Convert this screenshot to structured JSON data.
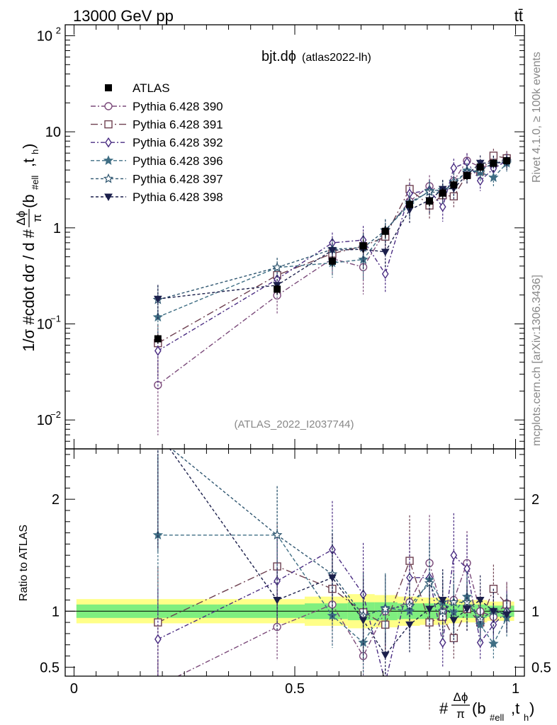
{
  "header": {
    "left": "13000 GeV pp",
    "right": "tt̄"
  },
  "side": {
    "rivet": "Rivet 4.1.0, ≥ 100k events",
    "mcplots": "mcplots.cern.ch [arXiv:1306.3436]"
  },
  "chart_data": {
    "type": "line",
    "title": "bjt.dϕ",
    "subtitle": "(atlas2022-lh)",
    "watermark": "(ATLAS_2022_I2037744)",
    "ylabel": "1/σ #cdot dσ / d #Δϕ/π(b#ell,th)",
    "ylabel_parts": {
      "prefix": "1/σ #cdot dσ / d #",
      "frac_num": "Δϕ",
      "frac_den": "π",
      "paren_open": "(b",
      "sub1": "#ell",
      "mid": ",t",
      "sub2": "h",
      "paren_close": ")"
    },
    "xlabel_parts": {
      "prefix": "#",
      "frac_num": "Δϕ",
      "frac_den": "π",
      "paren_open": "(b",
      "sub1": "#ell",
      "mid": ",t",
      "sub2": "h",
      "paren_close": ")"
    },
    "ratio_ylabel": "Ratio to ATLAS",
    "xlim": [
      -0.02,
      1.02
    ],
    "ylim": [
      0.005,
      130
    ],
    "yscale": "log",
    "ratio_ylim": [
      0.42,
      2.45
    ],
    "x_ticks": [
      {
        "v": 0,
        "label": "0"
      },
      {
        "v": 0.5,
        "label": "0.5"
      },
      {
        "v": 1,
        "label": "1"
      }
    ],
    "y_ticks": [
      {
        "v": 0.01,
        "base": "10",
        "exp": "−2"
      },
      {
        "v": 0.1,
        "base": "10",
        "exp": "−1"
      },
      {
        "v": 1,
        "base": "1",
        "exp": ""
      },
      {
        "v": 10,
        "base": "10",
        "exp": ""
      },
      {
        "v": 100,
        "base": "10",
        "exp": "2"
      }
    ],
    "ratio_ticks": [
      {
        "v": 0.5,
        "label": "0.5"
      },
      {
        "v": 1,
        "label": "1"
      },
      {
        "v": 2,
        "label": "2"
      }
    ],
    "x": [
      0.19,
      0.46,
      0.585,
      0.655,
      0.705,
      0.76,
      0.805,
      0.835,
      0.86,
      0.89,
      0.92,
      0.95,
      0.98
    ],
    "data": {
      "name": "ATLAS",
      "values": [
        0.07,
        0.23,
        0.45,
        0.65,
        0.92,
        1.75,
        1.9,
        2.3,
        2.8,
        3.5,
        4.3,
        4.7,
        5.0
      ],
      "stat_rel": [
        0.06,
        0.06,
        0.07,
        0.08,
        0.08,
        0.07,
        0.07,
        0.07,
        0.06,
        0.06,
        0.06,
        0.05,
        0.05
      ],
      "syst_rel": [
        0.09,
        0.09,
        0.11,
        0.13,
        0.12,
        0.11,
        0.1,
        0.1,
        0.09,
        0.08,
        0.08,
        0.07,
        0.07
      ]
    },
    "series": [
      {
        "name": "Pythia 6.428 390",
        "color": "#7b4a7a",
        "marker": "circle",
        "dash": "7 3 2 3",
        "ratio": [
          0.33,
          0.86,
          1.06,
          0.6,
          1.0,
          1.08,
          1.43,
          1.0,
          1.1,
          1.43,
          1.0,
          0.95,
          1.07
        ],
        "err_rel": [
          0.7,
          0.35,
          0.33,
          0.48,
          0.32,
          0.3,
          0.3,
          0.26,
          0.24,
          0.2,
          0.2,
          0.2,
          0.18
        ]
      },
      {
        "name": "Pythia 6.428 391",
        "color": "#6e4050",
        "marker": "square",
        "dash": "10 4 2 4",
        "ratio": [
          0.9,
          1.4,
          1.2,
          0.99,
          0.88,
          1.45,
          0.9,
          0.95,
          0.76,
          1.02,
          0.9,
          1.2,
          1.06
        ],
        "err_rel": [
          0.55,
          0.28,
          0.3,
          0.4,
          0.3,
          0.28,
          0.28,
          0.25,
          0.24,
          0.2,
          0.2,
          0.18,
          0.18
        ]
      },
      {
        "name": "Pythia 6.428 392",
        "color": "#4a2c82",
        "marker": "diamond",
        "dash": "6 3 2 3",
        "ratio": [
          0.75,
          1.27,
          1.55,
          1.15,
          0.36,
          1.3,
          1.3,
          0.72,
          1.5,
          1.38,
          0.72,
          0.88,
          1.0
        ],
        "err_rel": [
          0.6,
          0.3,
          0.28,
          0.4,
          0.35,
          0.28,
          0.28,
          0.3,
          0.25,
          0.22,
          0.22,
          0.2,
          0.18
        ]
      },
      {
        "name": "Pythia 6.428 396",
        "color": "#3f6e84",
        "marker": "star-filled",
        "dash": "5 3",
        "ratio": [
          1.68,
          1.68,
          0.96,
          0.72,
          1.03,
          1.0,
          1.28,
          1.08,
          0.99,
          1.13,
          0.88,
          0.71,
          0.94
        ],
        "err_rel": [
          0.42,
          0.26,
          0.3,
          0.4,
          0.3,
          0.28,
          0.28,
          0.25,
          0.24,
          0.2,
          0.2,
          0.2,
          0.18
        ]
      },
      {
        "name": "Pythia 6.428 397",
        "color": "#2f5670",
        "marker": "star-open",
        "dash": "4 3",
        "ratio": [
          2.55,
          1.68,
          1.33,
          0.96,
          1.02,
          1.05,
          1.25,
          1.0,
          1.08,
          1.08,
          0.93,
          1.0,
          0.98
        ],
        "err_rel": [
          0.4,
          0.26,
          0.3,
          0.4,
          0.3,
          0.28,
          0.28,
          0.25,
          0.24,
          0.2,
          0.2,
          0.2,
          0.18
        ]
      },
      {
        "name": "Pythia 6.428 398",
        "color": "#1b1f4b",
        "marker": "tri-down",
        "dash": "4 3",
        "ratio": [
          2.6,
          1.1,
          1.3,
          0.92,
          0.61,
          0.88,
          1.02,
          1.1,
          0.92,
          1.02,
          1.1,
          1.0,
          0.97
        ],
        "err_rel": [
          0.4,
          0.26,
          0.3,
          0.4,
          0.32,
          0.28,
          0.28,
          0.25,
          0.24,
          0.2,
          0.2,
          0.2,
          0.18
        ]
      }
    ]
  }
}
